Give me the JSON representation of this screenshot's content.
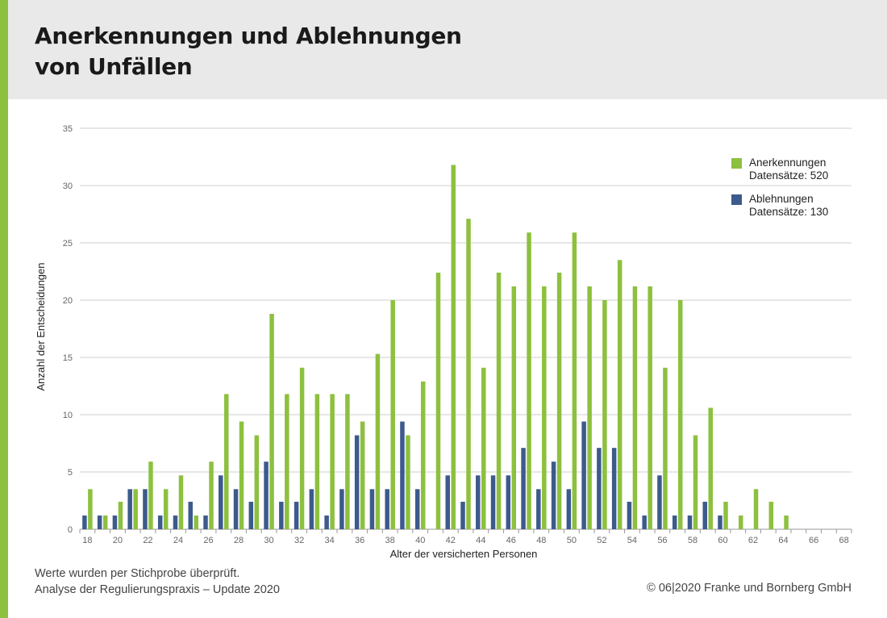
{
  "header": {
    "title_line1": "Anerkennungen und Ablehnungen",
    "title_line2": "von Unfällen"
  },
  "colors": {
    "accent": "#8dc03f",
    "anerkennungen": "#8dc03f",
    "ablehnungen": "#3d5a8c",
    "header_bg": "#e9e9e9",
    "grid": "#cfcfcf"
  },
  "chart_data": {
    "type": "bar",
    "xlabel": "Alter der versicherten Personen",
    "ylabel": "Anzahl der Entscheidungen",
    "ylim": [
      0,
      35
    ],
    "yticks": [
      0,
      5,
      10,
      15,
      20,
      25,
      30,
      35
    ],
    "x": [
      18,
      19,
      20,
      21,
      22,
      23,
      24,
      25,
      26,
      27,
      28,
      29,
      30,
      31,
      32,
      33,
      34,
      35,
      36,
      37,
      38,
      39,
      40,
      41,
      42,
      43,
      44,
      45,
      46,
      47,
      48,
      49,
      50,
      51,
      52,
      53,
      54,
      55,
      56,
      57,
      58,
      59,
      60,
      61,
      62,
      63,
      64,
      65,
      66,
      67,
      68
    ],
    "xticks": [
      18,
      20,
      22,
      24,
      26,
      28,
      30,
      32,
      34,
      36,
      38,
      40,
      42,
      44,
      46,
      48,
      50,
      52,
      54,
      56,
      58,
      60,
      62,
      64,
      66,
      68
    ],
    "grid": true,
    "legend_position": "top-right",
    "series": [
      {
        "name": "Anerkennungen",
        "legend_sub": "Datensätze: 520",
        "values": [
          3.5,
          1.2,
          2.4,
          3.5,
          5.9,
          3.5,
          4.7,
          1.2,
          5.9,
          11.8,
          9.4,
          8.2,
          18.8,
          11.8,
          14.1,
          11.8,
          11.8,
          11.8,
          9.4,
          15.3,
          20,
          8.2,
          12.9,
          22.4,
          31.8,
          27.1,
          14.1,
          22.4,
          21.2,
          25.9,
          21.2,
          22.4,
          25.9,
          21.2,
          20,
          23.5,
          21.2,
          21.2,
          14.1,
          20,
          8.2,
          10.6,
          2.4,
          1.2,
          3.5,
          2.4,
          1.2,
          0,
          0,
          0,
          0
        ]
      },
      {
        "name": "Ablehnungen",
        "legend_sub": "Datensätze: 130",
        "values": [
          1.2,
          1.2,
          1.2,
          3.5,
          3.5,
          1.2,
          1.2,
          2.4,
          1.2,
          4.7,
          3.5,
          2.4,
          5.9,
          2.4,
          2.4,
          3.5,
          1.2,
          3.5,
          8.2,
          3.5,
          3.5,
          9.4,
          3.5,
          0,
          4.7,
          2.4,
          4.7,
          4.7,
          4.7,
          7.1,
          3.5,
          5.9,
          3.5,
          9.4,
          7.1,
          7.1,
          2.4,
          1.2,
          4.7,
          1.2,
          1.2,
          2.4,
          1.2,
          0,
          0,
          0,
          0,
          0,
          0,
          0,
          0
        ]
      }
    ]
  },
  "footer": {
    "note_line1": "Werte wurden per Stichprobe überprüft.",
    "note_line2": "Analyse der Regulierungspraxis – Update 2020",
    "copyright": "© 06|2020 Franke und Bornberg GmbH"
  }
}
